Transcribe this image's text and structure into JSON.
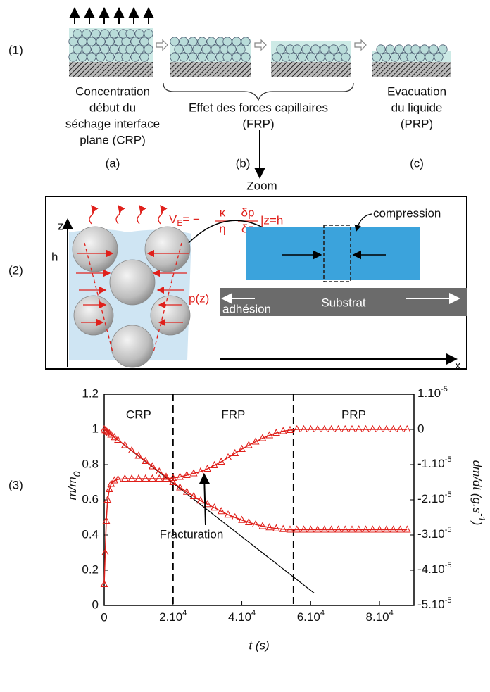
{
  "panel1": {
    "label": "(1)",
    "stages": [
      {
        "caption": [
          "Concentration",
          "début du",
          "séchage interface",
          "plane (CRP)"
        ],
        "letter": "(a)"
      },
      {
        "caption": [
          "Effet des forces capillaires",
          "(FRP)"
        ],
        "letter": "(b)"
      },
      {
        "caption": [
          "Evacuation",
          "du liquide",
          "(PRP)"
        ],
        "letter": "(c)"
      }
    ],
    "zoom": "Zoom"
  },
  "panel2": {
    "label": "(2)",
    "z_axis": "z",
    "height": "h",
    "x_axis": "x",
    "formula": {
      "v": "V",
      "sub": "E",
      "eq": "= −",
      "kappa": "κ",
      "eta": "η",
      "dp": "δp",
      "dz": "δz",
      "cond": "|z=h"
    },
    "pressure": "p(z)",
    "compression": "compression",
    "adhesion": "adhésion",
    "substrate": "Substrat"
  },
  "panel3": {
    "label": "(3)"
  },
  "chart_data": {
    "type": "line",
    "marker": "triangle",
    "xlabel": "t (s)",
    "ylabel": [
      "m/m",
      "0"
    ],
    "y2label": [
      "dm/dt (g.s",
      "-1",
      ")"
    ],
    "xlim": [
      0,
      90000
    ],
    "xticks": [
      0,
      {
        "value": 20000,
        "label": "2.10",
        "exponent": "4"
      },
      {
        "value": 40000,
        "label": "4.10",
        "exponent": "4"
      },
      {
        "value": 60000,
        "label": "6.10",
        "exponent": "4"
      },
      {
        "value": 80000,
        "label": "8.10",
        "exponent": "4"
      }
    ],
    "ylim": [
      0,
      1.2
    ],
    "yticks": [
      0,
      0.2,
      0.4,
      0.6,
      0.8,
      1,
      1.2
    ],
    "y2lim": [
      -5e-05,
      1e-05
    ],
    "y2ticks": [
      {
        "value": 1e-05,
        "label": "1.10",
        "exponent": "-5"
      },
      0,
      {
        "value": -1e-05,
        "label": "-1.10",
        "exponent": "-5"
      },
      {
        "value": -2e-05,
        "label": "-2.10",
        "exponent": "-5"
      },
      {
        "value": -3e-05,
        "label": "-3.10",
        "exponent": "-5"
      },
      {
        "value": -4e-05,
        "label": "-4.10",
        "exponent": "-5"
      },
      {
        "value": -5e-05,
        "label": "-5.10",
        "exponent": "-5"
      }
    ],
    "regions": [
      "CRP",
      "FRP",
      "PRP"
    ],
    "boundaries": [
      20000,
      55000
    ],
    "annotation": "Fracturation",
    "x": [
      0,
      300,
      600,
      1000,
      1500,
      2000,
      3000,
      4000,
      6000,
      8000,
      10000,
      12000,
      14000,
      16000,
      18000,
      20000,
      22000,
      24000,
      26000,
      28000,
      30000,
      32000,
      34000,
      36000,
      38000,
      40000,
      42000,
      44000,
      46000,
      48000,
      50000,
      52000,
      54000,
      56000,
      58000,
      60000,
      62000,
      64000,
      66000,
      68000,
      70000,
      72000,
      74000,
      76000,
      78000,
      80000,
      82000,
      84000,
      86000,
      88000
    ],
    "series": [
      {
        "color": "#e0201b",
        "values": [
          1,
          0.995,
          0.99,
          0.985,
          0.977,
          0.97,
          0.955,
          0.94,
          0.91,
          0.88,
          0.85,
          0.82,
          0.79,
          0.76,
          0.73,
          0.7,
          0.67,
          0.645,
          0.62,
          0.595,
          0.575,
          0.555,
          0.535,
          0.515,
          0.5,
          0.485,
          0.472,
          0.46,
          0.45,
          0.443,
          0.437,
          0.433,
          0.43,
          0.43,
          0.43,
          0.43,
          0.43,
          0.43,
          0.43,
          0.43,
          0.43,
          0.43,
          0.43,
          0.43,
          0.43,
          0.43,
          0.43,
          0.43,
          0.43,
          0.43
        ]
      },
      {
        "color": "#e0201b",
        "axis": "y2",
        "values": [
          -4.4e-05,
          -3.5e-05,
          -2.6e-05,
          -2e-05,
          -1.7e-05,
          -1.55e-05,
          -1.45e-05,
          -1.42e-05,
          -1.4e-05,
          -1.4e-05,
          -1.4e-05,
          -1.4e-05,
          -1.4e-05,
          -1.4e-05,
          -1.4e-05,
          -1.38e-05,
          -1.35e-05,
          -1.3e-05,
          -1.25e-05,
          -1.2e-05,
          -1.12e-05,
          -1.02e-05,
          -9.2e-06,
          -8e-06,
          -6.8e-06,
          -5.6e-06,
          -4.5e-06,
          -3.5e-06,
          -2.5e-06,
          -1.7e-06,
          -1e-06,
          -5e-07,
          -2e-07,
          0,
          0,
          0,
          0,
          0,
          0,
          0,
          0,
          0,
          0,
          0,
          0,
          0,
          0,
          0,
          0,
          0
        ]
      }
    ],
    "tangent": {
      "color": "#000000",
      "x": [
        0,
        61000
      ],
      "y": [
        1,
        0.07
      ]
    }
  }
}
